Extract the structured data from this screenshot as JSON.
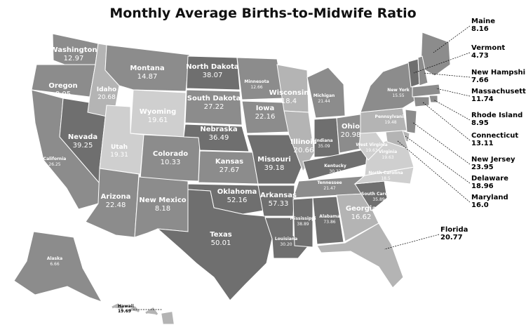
{
  "title": "Monthly Average Births-to-Midwife Ratio",
  "colors": {
    "dark": "#6f6f6f",
    "mid": "#8c8c8c",
    "light": "#b4b4b4",
    "vlight": "#cfcfcf",
    "border": "#ffffff",
    "text_on_dark": "#ffffff",
    "callout_text": "#000000"
  },
  "states": {
    "WA": {
      "name": "Washington",
      "value": "12.97",
      "shade": "mid"
    },
    "OR": {
      "name": "Oregon",
      "value": "8.05",
      "shade": "mid"
    },
    "CA": {
      "name": "California",
      "value": "26.25",
      "shade": "mid"
    },
    "NV": {
      "name": "Nevada",
      "value": "39.25",
      "shade": "dark"
    },
    "ID": {
      "name": "Idaho",
      "value": "20.68",
      "shade": "light"
    },
    "MT": {
      "name": "Montana",
      "value": "14.87",
      "shade": "mid"
    },
    "WY": {
      "name": "Wyoming",
      "value": "19.61",
      "shade": "vlight"
    },
    "UT": {
      "name": "Utah",
      "value": "19.31",
      "shade": "vlight"
    },
    "CO": {
      "name": "Colorado",
      "value": "10.33",
      "shade": "mid"
    },
    "AZ": {
      "name": "Arizona",
      "value": "22.48",
      "shade": "mid"
    },
    "NM": {
      "name": "New Mexico",
      "value": "8.18",
      "shade": "mid"
    },
    "ND": {
      "name": "North Dakota",
      "value": "38.07",
      "shade": "dark"
    },
    "SD": {
      "name": "South Dakota",
      "value": "27.22",
      "shade": "mid"
    },
    "NE": {
      "name": "Nebraska",
      "value": "36.49",
      "shade": "dark"
    },
    "KS": {
      "name": "Kansas",
      "value": "27.67",
      "shade": "mid"
    },
    "OK": {
      "name": "Oklahoma",
      "value": "52.16",
      "shade": "dark"
    },
    "TX": {
      "name": "Texas",
      "value": "50.01",
      "shade": "dark"
    },
    "MN": {
      "name": "Minnesota",
      "value": "12.66",
      "shade": "mid"
    },
    "IA": {
      "name": "Iowa",
      "value": "22.16",
      "shade": "mid"
    },
    "MO": {
      "name": "Missouri",
      "value": "39.18",
      "shade": "dark"
    },
    "AR": {
      "name": "Arkansas",
      "value": "57.33",
      "shade": "dark"
    },
    "LA": {
      "name": "Louisiana",
      "value": "30.20",
      "shade": "dark"
    },
    "WI": {
      "name": "Wisconsin",
      "value": "18.4",
      "shade": "light"
    },
    "IL": {
      "name": "Illinois",
      "value": "20.66",
      "shade": "light"
    },
    "MI": {
      "name": "Michigan",
      "value": "21.44",
      "shade": "mid"
    },
    "IN": {
      "name": "Indiana",
      "value": "35.09",
      "shade": "dark"
    },
    "OH": {
      "name": "Ohio",
      "value": "20.98",
      "shade": "mid"
    },
    "KY": {
      "name": "Kentucky",
      "value": "30.22",
      "shade": "dark"
    },
    "TN": {
      "name": "Tennessee",
      "value": "21.47",
      "shade": "mid"
    },
    "MS": {
      "name": "Mississippi",
      "value": "38.89",
      "shade": "dark"
    },
    "AL": {
      "name": "Alabama",
      "value": "73.86",
      "shade": "dark"
    },
    "GA": {
      "name": "Georgia",
      "value": "16.62",
      "shade": "light"
    },
    "FL": {
      "name": "Florida",
      "value": "20.77",
      "shade": "light"
    },
    "SC": {
      "name": "South Carolina",
      "value": "35.89",
      "shade": "dark"
    },
    "NC": {
      "name": "North Carolina",
      "value": "18.5",
      "shade": "vlight"
    },
    "VA": {
      "name": "Virginia",
      "value": "19.63",
      "shade": "vlight"
    },
    "WV": {
      "name": "West Virginia",
      "value": "19.63",
      "shade": "vlight"
    },
    "PA": {
      "name": "Pennsylvania",
      "value": "19.48",
      "shade": "light"
    },
    "NY": {
      "name": "New York",
      "value": "15.55",
      "shade": "mid"
    },
    "ME": {
      "name": "Maine",
      "value": "8.16",
      "shade": "mid"
    },
    "VT": {
      "name": "Vermont",
      "value": "4.73",
      "shade": "dark"
    },
    "NH": {
      "name": "New Hampshire",
      "value": "7.66",
      "shade": "mid"
    },
    "MA": {
      "name": "Massachusetts",
      "value": "11.74",
      "shade": "mid"
    },
    "RI": {
      "name": "Rhode Island",
      "value": "8.95",
      "shade": "mid"
    },
    "CT": {
      "name": "Connecticut",
      "value": "13.11",
      "shade": "mid"
    },
    "NJ": {
      "name": "New Jersey",
      "value": "23.95",
      "shade": "mid"
    },
    "DE": {
      "name": "Delaware",
      "value": "18.96",
      "shade": "light"
    },
    "MD": {
      "name": "Maryland",
      "value": "16.0",
      "shade": "light"
    },
    "AK": {
      "name": "Alaska",
      "value": "6.66",
      "shade": "mid"
    },
    "HI": {
      "name": "Hawaii",
      "value": "19.69",
      "shade": "light"
    }
  }
}
